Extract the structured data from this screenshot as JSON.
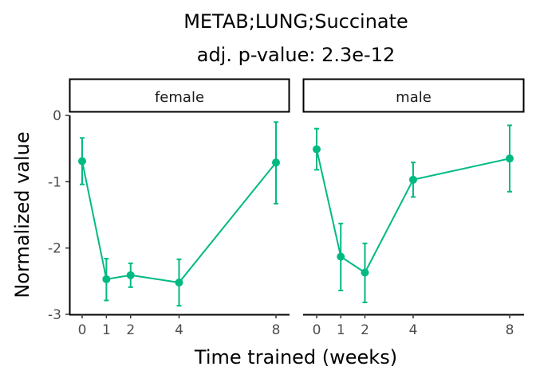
{
  "chart_data": {
    "type": "line",
    "title_line1": "METAB;LUNG;Succinate",
    "title_line2": "adj. p-value: 2.3e-12",
    "xlabel": "Time trained (weeks)",
    "ylabel": "Normalized value",
    "x_ticks": [
      0,
      1,
      2,
      4,
      8
    ],
    "y_ticks": [
      0,
      -1,
      -2,
      -3
    ],
    "ylim": [
      -3,
      0
    ],
    "xlim": [
      0,
      8
    ],
    "grid": false,
    "color": "#00BA83",
    "panels": [
      {
        "label": "female",
        "x": [
          0,
          1,
          2,
          4,
          8
        ],
        "y": [
          -0.69,
          -2.47,
          -2.41,
          -2.52,
          -0.71
        ],
        "err_low": [
          -1.04,
          -2.79,
          -2.59,
          -2.87,
          -1.33
        ],
        "err_high": [
          -0.34,
          -2.16,
          -2.23,
          -2.17,
          -0.1
        ]
      },
      {
        "label": "male",
        "x": [
          0,
          1,
          2,
          4,
          8
        ],
        "y": [
          -0.51,
          -2.13,
          -2.37,
          -0.97,
          -0.65
        ],
        "err_low": [
          -0.82,
          -2.64,
          -2.82,
          -1.23,
          -1.15
        ],
        "err_high": [
          -0.2,
          -1.63,
          -1.93,
          -0.71,
          -0.15
        ]
      }
    ]
  }
}
